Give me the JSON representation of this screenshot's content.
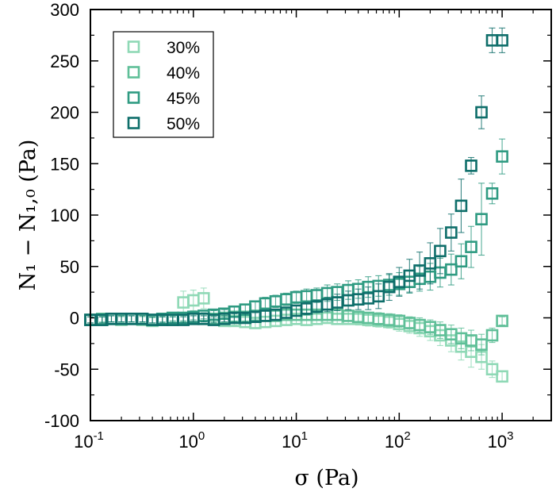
{
  "chart_data": {
    "type": "scatter",
    "xscale": "log",
    "xlim": [
      0.1,
      3000
    ],
    "ylim": [
      -100,
      300
    ],
    "xlabel": "σ (Pa)",
    "ylabel": "N₁ − N₁,₀ (Pa)",
    "xticks": [
      {
        "value": 0.1,
        "base": "10",
        "exp": "-1"
      },
      {
        "value": 1,
        "base": "10",
        "exp": "0"
      },
      {
        "value": 10,
        "base": "10",
        "exp": "1"
      },
      {
        "value": 100,
        "base": "10",
        "exp": "2"
      },
      {
        "value": 1000,
        "base": "10",
        "exp": "3"
      }
    ],
    "yticks": [
      -100,
      -50,
      0,
      50,
      100,
      150,
      200,
      250,
      300
    ],
    "legend_position": "top-left",
    "grid": false,
    "marker": "open-square",
    "series": [
      {
        "name": "30%",
        "color": "#8fd9b6",
        "x": [
          0.1,
          0.13,
          0.16,
          0.2,
          0.25,
          0.32,
          0.4,
          0.5,
          0.63,
          0.8,
          1.0,
          1.26,
          1.58,
          2.0,
          2.5,
          3.2,
          4.0,
          5.0,
          6.3,
          8.0,
          10,
          12.6,
          15.8,
          20,
          25,
          32,
          40,
          50,
          63,
          80,
          100,
          126,
          158,
          200,
          250,
          320,
          400,
          500,
          630,
          800,
          1000
        ],
        "y": [
          -2,
          -2,
          -1,
          -2,
          -1,
          -2,
          -3,
          -2,
          -1,
          15,
          17,
          19,
          -1,
          -3,
          -3,
          -4,
          -5,
          -4,
          -3,
          -2,
          -1,
          -2,
          -1,
          0,
          -1,
          -1,
          -1,
          -2,
          -3,
          -4,
          -6,
          -8,
          -10,
          -13,
          -17,
          -22,
          -28,
          -33,
          -38,
          -50,
          -57
        ],
        "err": [
          3,
          3,
          3,
          3,
          3,
          3,
          3,
          3,
          3,
          11,
          10,
          10,
          3,
          4,
          4,
          5,
          5,
          5,
          5,
          5,
          5,
          5,
          5,
          5,
          5,
          5,
          6,
          6,
          6,
          6,
          7,
          7,
          8,
          9,
          10,
          11,
          13,
          15,
          12,
          8,
          5
        ]
      },
      {
        "name": "40%",
        "color": "#5fbf98",
        "x": [
          0.1,
          0.13,
          0.16,
          0.2,
          0.25,
          0.32,
          0.4,
          0.5,
          0.63,
          0.8,
          1.0,
          1.26,
          1.58,
          2.0,
          2.5,
          3.2,
          4.0,
          5.0,
          6.3,
          8.0,
          10,
          12.6,
          15.8,
          20,
          25,
          32,
          40,
          50,
          63,
          80,
          100,
          126,
          158,
          200,
          250,
          320,
          400,
          500,
          630,
          800,
          1000
        ],
        "y": [
          -2,
          -1,
          -1,
          -1,
          -1,
          -1,
          -2,
          -2,
          -2,
          -1,
          -1,
          -1,
          -1,
          0,
          1,
          1,
          2,
          2,
          2,
          3,
          3,
          3,
          3,
          3,
          3,
          2,
          1,
          0,
          -1,
          -2,
          -3,
          -5,
          -7,
          -9,
          -12,
          -16,
          -20,
          -22,
          -26,
          -17,
          -3
        ],
        "err": [
          3,
          3,
          3,
          3,
          3,
          3,
          3,
          3,
          3,
          3,
          3,
          3,
          3,
          4,
          4,
          4,
          4,
          5,
          5,
          5,
          5,
          5,
          5,
          5,
          5,
          5,
          5,
          5,
          6,
          6,
          6,
          6,
          7,
          7,
          8,
          9,
          10,
          10,
          10,
          7,
          4
        ]
      },
      {
        "name": "45%",
        "color": "#2f9b82",
        "x": [
          0.1,
          0.13,
          0.16,
          0.2,
          0.25,
          0.32,
          0.4,
          0.5,
          0.63,
          0.8,
          1.0,
          1.26,
          1.58,
          2.0,
          2.5,
          3.2,
          4.0,
          5.0,
          6.3,
          8.0,
          10,
          12.6,
          15.8,
          20,
          25,
          32,
          40,
          50,
          63,
          80,
          100,
          126,
          158,
          200,
          250,
          320,
          400,
          500,
          630,
          800,
          1000
        ],
        "y": [
          -2,
          -2,
          -1,
          -1,
          -1,
          -1,
          -2,
          -1,
          0,
          0,
          1,
          2,
          3,
          4,
          6,
          8,
          11,
          14,
          16,
          18,
          20,
          21,
          22,
          24,
          25,
          27,
          28,
          30,
          31,
          32,
          33,
          35,
          38,
          40,
          44,
          47,
          55,
          69,
          96,
          121,
          157
        ],
        "err": [
          3,
          3,
          3,
          3,
          3,
          3,
          3,
          3,
          3,
          3,
          3,
          3,
          4,
          4,
          5,
          5,
          5,
          6,
          6,
          6,
          6,
          7,
          7,
          8,
          8,
          9,
          9,
          10,
          10,
          10,
          11,
          11,
          12,
          13,
          14,
          15,
          17,
          20,
          35,
          10,
          17
        ]
      },
      {
        "name": "50%",
        "color": "#0e6e6a",
        "x": [
          0.1,
          0.13,
          0.16,
          0.2,
          0.25,
          0.32,
          0.4,
          0.5,
          0.63,
          0.8,
          1.0,
          1.26,
          1.58,
          2.0,
          2.5,
          3.2,
          4.0,
          5.0,
          6.3,
          8.0,
          10,
          12.6,
          15.8,
          20,
          25,
          32,
          40,
          50,
          63,
          80,
          100,
          126,
          158,
          200,
          250,
          320,
          400,
          500,
          630,
          800,
          1000
        ],
        "y": [
          -2,
          -2,
          -1,
          -1,
          -1,
          -1,
          -2,
          -2,
          -2,
          -2,
          -1,
          -1,
          -2,
          -1,
          0,
          0,
          1,
          2,
          3,
          5,
          7,
          9,
          11,
          13,
          15,
          17,
          18,
          19,
          21,
          30,
          35,
          41,
          46,
          53,
          65,
          83,
          109,
          148,
          200,
          270,
          270
        ],
        "err": [
          3,
          3,
          3,
          3,
          3,
          3,
          3,
          3,
          3,
          3,
          3,
          3,
          3,
          3,
          4,
          4,
          4,
          5,
          5,
          5,
          5,
          6,
          6,
          7,
          8,
          9,
          10,
          11,
          12,
          13,
          14,
          16,
          18,
          20,
          22,
          18,
          26,
          8,
          16,
          12,
          12
        ]
      }
    ]
  }
}
